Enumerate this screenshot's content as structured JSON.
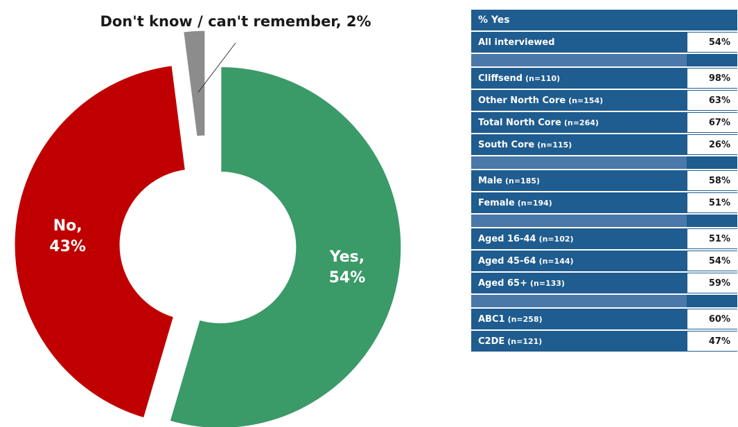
{
  "chart_data": {
    "type": "pie",
    "callout_label": "Don't know / can't remember, 2%",
    "slices": [
      {
        "label": "Yes,",
        "value_label": "54%",
        "value": 54,
        "color": "#3a9a68"
      },
      {
        "label": "No,",
        "value_label": "43%",
        "value": 43,
        "color": "#c00000"
      },
      {
        "label": "Don't know / can't remember",
        "value_label": "2%",
        "value": 2,
        "color": "#8c8c8c"
      }
    ]
  },
  "table": {
    "header": "% Yes",
    "groups": [
      [
        {
          "label": "All interviewed",
          "n": "",
          "value": "54%"
        }
      ],
      [
        {
          "label": "Cliffsend",
          "n": "(n=110)",
          "value": "98%"
        },
        {
          "label": "Other North Core",
          "n": "(n=154)",
          "value": "63%"
        },
        {
          "label": "Total North Core",
          "n": "(n=264)",
          "value": "67%"
        },
        {
          "label": "South Core",
          "n": "(n=115)",
          "value": "26%"
        }
      ],
      [
        {
          "label": "Male",
          "n": "(n=185)",
          "value": "58%"
        },
        {
          "label": "Female",
          "n": "(n=194)",
          "value": "51%"
        }
      ],
      [
        {
          "label": "Aged 16-44",
          "n": "(n=102)",
          "value": "51%"
        },
        {
          "label": "Aged 45-64",
          "n": "(n=144)",
          "value": "54%"
        },
        {
          "label": "Aged 65+",
          "n": "(n=133)",
          "value": "59%"
        }
      ],
      [
        {
          "label": "ABC1",
          "n": "(n=258)",
          "value": "60%"
        },
        {
          "label": "C2DE",
          "n": "(n=121)",
          "value": "47%"
        }
      ]
    ]
  }
}
